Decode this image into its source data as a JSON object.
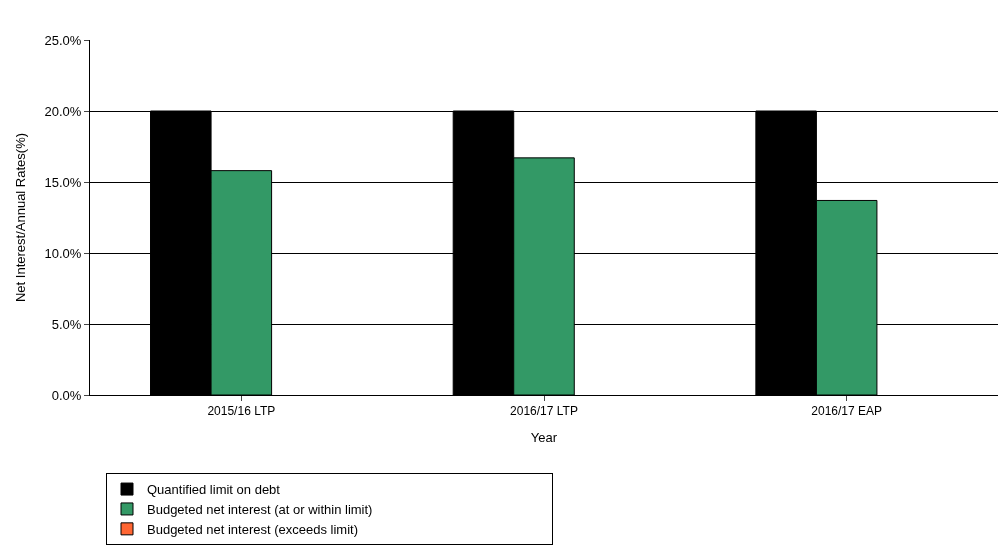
{
  "chart_data": {
    "type": "bar",
    "xlabel": "Year",
    "ylabel": "Net Interest/Annual Rates(%)",
    "categories": [
      "2015/16 LTP",
      "2016/17 LTP",
      "2016/17 EAP"
    ],
    "series": [
      {
        "name": "Quantified limit on debt",
        "color": "#000000",
        "values": [
          20.0,
          20.0,
          20.0
        ]
      },
      {
        "name": "Budgeted net interest (at or within limit)",
        "color": "#339966",
        "values": [
          15.8,
          16.7,
          13.7
        ]
      },
      {
        "name": "Budgeted net interest (exceeds limit)",
        "color": "#ff6633",
        "values": [
          null,
          null,
          null
        ]
      }
    ],
    "ylim": [
      0,
      25
    ],
    "yticks": [
      {
        "value": 0,
        "label": "0.0%"
      },
      {
        "value": 5,
        "label": "5.0%"
      },
      {
        "value": 10,
        "label": "10.0%"
      },
      {
        "value": 15,
        "label": "15.0%"
      },
      {
        "value": 20,
        "label": "20.0%"
      },
      {
        "value": 25,
        "label": "25.0%"
      }
    ],
    "grid": "y",
    "legend": "bottom"
  }
}
